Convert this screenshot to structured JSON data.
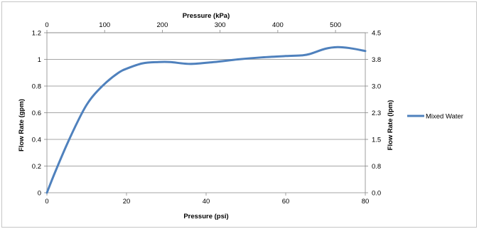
{
  "chart_data": {
    "type": "line",
    "title": "",
    "xlabel": "Pressure (psi)",
    "ylabel": "Flow Rate (gpm)",
    "x2label": "Pressure (kPa)",
    "y2label": "Flow Rate (lpm)",
    "xlim": [
      0,
      80
    ],
    "ylim": [
      0,
      1.2
    ],
    "xticks": [
      "0",
      "20",
      "40",
      "60",
      "80"
    ],
    "yticks": [
      "0",
      "0.2",
      "0.4",
      "0.6",
      "0.8",
      "1",
      "1.2"
    ],
    "x2lim": [
      0,
      551.6
    ],
    "x2ticks": [
      "0",
      "100",
      "200",
      "300",
      "400",
      "500"
    ],
    "y2ticks": [
      "0.0",
      "0.8",
      "1.5",
      "2.3",
      "3.0",
      "3.8",
      "4.5"
    ],
    "grid": true,
    "legend_position": "right",
    "series": [
      {
        "name": "Mixed Water",
        "color": "#4F81BD",
        "x": [
          0,
          2,
          5,
          8,
          10,
          12,
          15,
          18,
          20,
          24,
          28,
          31,
          36,
          42,
          48,
          54,
          60,
          64,
          66,
          70,
          73,
          76,
          80
        ],
        "y": [
          0,
          0.15,
          0.36,
          0.55,
          0.66,
          0.74,
          0.83,
          0.9,
          0.93,
          0.97,
          0.98,
          0.98,
          0.966,
          0.98,
          1.0,
          1.015,
          1.025,
          1.03,
          1.04,
          1.08,
          1.092,
          1.085,
          1.063
        ]
      }
    ]
  }
}
